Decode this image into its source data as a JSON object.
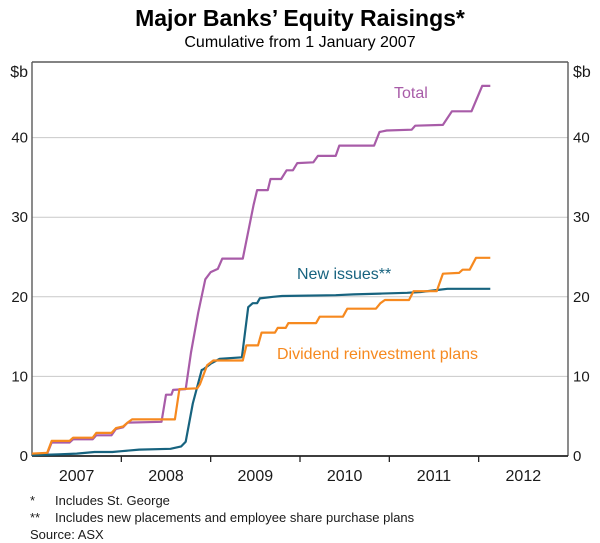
{
  "title": "Major Banks’ Equity Raisings*",
  "subtitle": "Cumulative from 1 January 2007",
  "y_axis": {
    "unit_left": "$b",
    "unit_right": "$b",
    "ticks": [
      0,
      10,
      20,
      30,
      40
    ]
  },
  "x_axis": {
    "labels": [
      "2007",
      "2008",
      "2009",
      "2010",
      "2011",
      "2012"
    ]
  },
  "series_labels": {
    "total": "Total",
    "new_issues": "New issues**",
    "drp": "Dividend reinvestment plans"
  },
  "footnotes": [
    {
      "marker": "*",
      "text": "Includes St. George"
    },
    {
      "marker": "**",
      "text": "Includes new placements and employee share purchase plans"
    }
  ],
  "source": "Source: ASX",
  "colors": {
    "total": "#a85ca8",
    "new_issues": "#17637f",
    "drp": "#f6891f",
    "grid": "#c9c9c9",
    "frame": "#5a5a5a",
    "axis": "#222222",
    "text": "#1a1a1a"
  },
  "chart_data": {
    "type": "line",
    "title": "Major Banks’ Equity Raisings*",
    "subtitle": "Cumulative from 1 January 2007",
    "ylabel": "$b",
    "xlim": [
      2007,
      2013
    ],
    "ylim": [
      0,
      49.5
    ],
    "grid": true,
    "legend_position": "inline-labels",
    "x_year_ticks": [
      2008,
      2009,
      2010,
      2011,
      2012
    ],
    "series": [
      {
        "id": "total",
        "name": "Total",
        "points": [
          [
            2007.0,
            0.2
          ],
          [
            2007.17,
            0.3
          ],
          [
            2007.22,
            1.7
          ],
          [
            2007.42,
            1.7
          ],
          [
            2007.46,
            2.1
          ],
          [
            2007.68,
            2.1
          ],
          [
            2007.72,
            2.6
          ],
          [
            2007.89,
            2.6
          ],
          [
            2007.94,
            3.4
          ],
          [
            2008.02,
            3.6
          ],
          [
            2008.07,
            4.2
          ],
          [
            2008.45,
            4.3
          ],
          [
            2008.5,
            7.7
          ],
          [
            2008.56,
            7.7
          ],
          [
            2008.58,
            8.3
          ],
          [
            2008.72,
            8.4
          ],
          [
            2008.78,
            13.0
          ],
          [
            2008.86,
            18.0
          ],
          [
            2008.94,
            22.2
          ],
          [
            2009.0,
            23.1
          ],
          [
            2009.08,
            23.5
          ],
          [
            2009.13,
            24.8
          ],
          [
            2009.36,
            24.8
          ],
          [
            2009.48,
            31.5
          ],
          [
            2009.52,
            33.4
          ],
          [
            2009.64,
            33.4
          ],
          [
            2009.67,
            34.8
          ],
          [
            2009.79,
            34.8
          ],
          [
            2009.85,
            35.9
          ],
          [
            2009.92,
            35.9
          ],
          [
            2009.97,
            36.8
          ],
          [
            2010.15,
            36.9
          ],
          [
            2010.2,
            37.7
          ],
          [
            2010.4,
            37.7
          ],
          [
            2010.44,
            39.0
          ],
          [
            2010.83,
            39.0
          ],
          [
            2010.89,
            40.7
          ],
          [
            2010.97,
            40.9
          ],
          [
            2011.25,
            41.0
          ],
          [
            2011.29,
            41.5
          ],
          [
            2011.6,
            41.6
          ],
          [
            2011.7,
            43.3
          ],
          [
            2011.92,
            43.3
          ],
          [
            2012.04,
            46.5
          ],
          [
            2012.13,
            46.5
          ]
        ]
      },
      {
        "id": "new_issues",
        "name": "New issues**",
        "points": [
          [
            2007.0,
            0.1
          ],
          [
            2007.3,
            0.2
          ],
          [
            2007.5,
            0.3
          ],
          [
            2007.7,
            0.5
          ],
          [
            2007.9,
            0.5
          ],
          [
            2008.0,
            0.6
          ],
          [
            2008.2,
            0.8
          ],
          [
            2008.55,
            0.9
          ],
          [
            2008.67,
            1.2
          ],
          [
            2008.72,
            1.8
          ],
          [
            2008.8,
            6.6
          ],
          [
            2008.9,
            10.8
          ],
          [
            2008.92,
            10.9
          ],
          [
            2009.0,
            11.6
          ],
          [
            2009.1,
            12.2
          ],
          [
            2009.35,
            12.4
          ],
          [
            2009.42,
            18.7
          ],
          [
            2009.47,
            19.2
          ],
          [
            2009.52,
            19.2
          ],
          [
            2009.55,
            19.8
          ],
          [
            2009.7,
            20.0
          ],
          [
            2009.8,
            20.1
          ],
          [
            2010.4,
            20.2
          ],
          [
            2010.6,
            20.3
          ],
          [
            2010.9,
            20.4
          ],
          [
            2011.2,
            20.5
          ],
          [
            2011.35,
            20.6
          ],
          [
            2011.5,
            20.8
          ],
          [
            2011.65,
            21.0
          ],
          [
            2012.13,
            21.0
          ]
        ]
      },
      {
        "id": "drp",
        "name": "Dividend reinvestment plans",
        "points": [
          [
            2007.0,
            0.3
          ],
          [
            2007.17,
            0.4
          ],
          [
            2007.22,
            1.9
          ],
          [
            2007.42,
            1.9
          ],
          [
            2007.46,
            2.3
          ],
          [
            2007.68,
            2.3
          ],
          [
            2007.72,
            2.9
          ],
          [
            2007.89,
            2.9
          ],
          [
            2007.94,
            3.5
          ],
          [
            2008.02,
            3.7
          ],
          [
            2008.07,
            4.2
          ],
          [
            2008.12,
            4.6
          ],
          [
            2008.6,
            4.6
          ],
          [
            2008.65,
            8.4
          ],
          [
            2008.85,
            8.5
          ],
          [
            2008.88,
            9.0
          ],
          [
            2008.96,
            11.4
          ],
          [
            2009.03,
            12.0
          ],
          [
            2009.36,
            12.0
          ],
          [
            2009.4,
            13.9
          ],
          [
            2009.53,
            13.9
          ],
          [
            2009.57,
            15.5
          ],
          [
            2009.72,
            15.5
          ],
          [
            2009.75,
            16.1
          ],
          [
            2009.84,
            16.1
          ],
          [
            2009.87,
            16.7
          ],
          [
            2010.18,
            16.7
          ],
          [
            2010.22,
            17.5
          ],
          [
            2010.48,
            17.5
          ],
          [
            2010.53,
            18.5
          ],
          [
            2010.85,
            18.5
          ],
          [
            2010.9,
            19.2
          ],
          [
            2010.95,
            19.6
          ],
          [
            2011.22,
            19.6
          ],
          [
            2011.27,
            20.7
          ],
          [
            2011.53,
            20.7
          ],
          [
            2011.6,
            22.9
          ],
          [
            2011.78,
            23.0
          ],
          [
            2011.82,
            23.4
          ],
          [
            2011.9,
            23.4
          ],
          [
            2011.97,
            24.9
          ],
          [
            2012.13,
            24.9
          ]
        ]
      }
    ]
  }
}
